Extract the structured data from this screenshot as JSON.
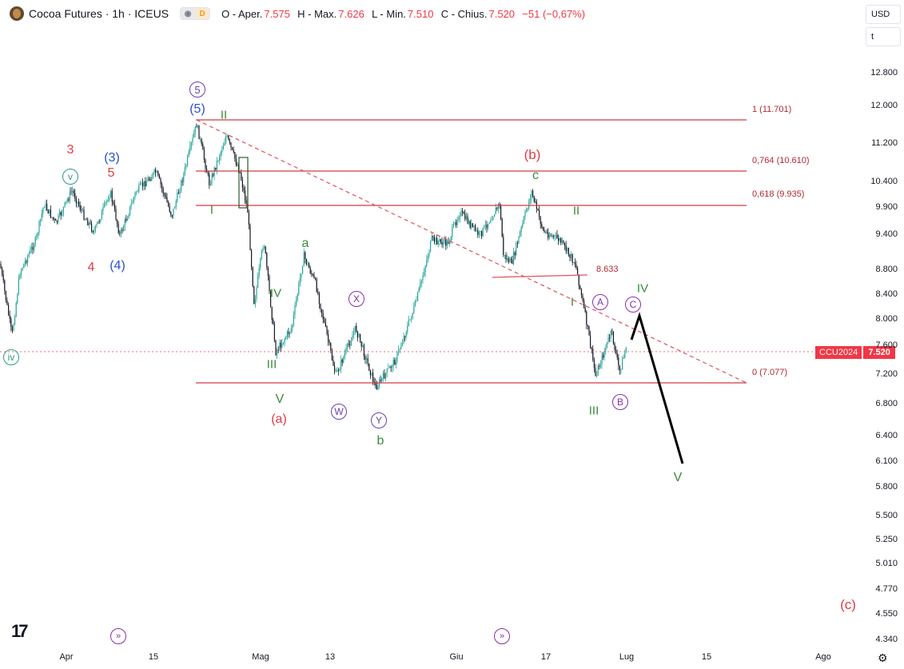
{
  "header": {
    "title": "Cocoa Futures · 1h · ICEUS",
    "badge_eye": "◉",
    "badge_d": "D",
    "ohlc": [
      {
        "label": "O - Aper.",
        "value": "7.575"
      },
      {
        "label": "H - Max.",
        "value": "7.626"
      },
      {
        "label": "L - Min.",
        "value": "7.510"
      },
      {
        "label": "C - Chius.",
        "value": "7.520"
      },
      {
        "label": "",
        "value": "−51 (−0,67%)"
      }
    ]
  },
  "right_tools": {
    "currency": "USD",
    "scale": "t"
  },
  "y_axis": [
    "12.800",
    "12.000",
    "11.200",
    "10.400",
    "9.900",
    "9.400",
    "8.800",
    "8.400",
    "8.000",
    "7.600",
    "7.200",
    "6.800",
    "6.400",
    "6.100",
    "5.800",
    "5.500",
    "5.250",
    "5.010",
    "4.770",
    "4.550",
    "4.340"
  ],
  "x_axis": [
    "Apr",
    "15",
    "Mag",
    "13",
    "Giu",
    "17",
    "Lug",
    "15",
    "Ago"
  ],
  "price_tag": {
    "symbol": "CCU2024",
    "value": "7.520"
  },
  "fib_levels": [
    {
      "label": "1 (11.701)"
    },
    {
      "label": "0,764 (10.610)"
    },
    {
      "label": "0,618 (9.935)"
    },
    {
      "label": "0 (7.077)"
    }
  ],
  "level_8633": "8.633",
  "wave_labels": [
    {
      "id": "w1",
      "text": "3",
      "color": "#e03a45"
    },
    {
      "id": "w2",
      "text": "5",
      "color": "#e03a45"
    },
    {
      "id": "w3",
      "text": "4",
      "color": "#e03a45"
    },
    {
      "id": "w4",
      "text": "(3)",
      "color": "#2a4fd0"
    },
    {
      "id": "w5",
      "text": "(4)",
      "color": "#2a4fd0"
    },
    {
      "id": "w6",
      "text": "(5)",
      "color": "#2a4fd0"
    },
    {
      "id": "w7",
      "text": "II",
      "color": "#3b8a3a"
    },
    {
      "id": "w8",
      "text": "I",
      "color": "#3b8a3a"
    },
    {
      "id": "w9",
      "text": "IV",
      "color": "#3b8a3a"
    },
    {
      "id": "w10",
      "text": "III",
      "color": "#3b8a3a"
    },
    {
      "id": "w11",
      "text": "V",
      "color": "#3b8a3a"
    },
    {
      "id": "w12",
      "text": "(a)",
      "color": "#e03a45"
    },
    {
      "id": "w13",
      "text": "a",
      "color": "#3b8a3a"
    },
    {
      "id": "w14",
      "text": "b",
      "color": "#3b8a3a"
    },
    {
      "id": "w15",
      "text": "(b)",
      "color": "#e03a45"
    },
    {
      "id": "w16",
      "text": "c",
      "color": "#3b8a3a"
    },
    {
      "id": "w17",
      "text": "II",
      "color": "#3b8a3a"
    },
    {
      "id": "w18",
      "text": "I",
      "color": "#3b8a3a"
    },
    {
      "id": "w19",
      "text": "III",
      "color": "#3b8a3a"
    },
    {
      "id": "w20",
      "text": "IV",
      "color": "#3b8a3a"
    },
    {
      "id": "w21",
      "text": "V",
      "color": "#3b8a3a"
    },
    {
      "id": "w22",
      "text": "(c)",
      "color": "#e03a45"
    }
  ],
  "circle_labels": [
    {
      "id": "c1",
      "text": "v",
      "color": "#2b9a8a"
    },
    {
      "id": "c2",
      "text": "iv",
      "color": "#2b9a8a"
    },
    {
      "id": "c3",
      "text": "5",
      "color": "#6a3fb0"
    },
    {
      "id": "c4",
      "text": "X",
      "color": "#8a2fa8"
    },
    {
      "id": "c5",
      "text": "W",
      "color": "#6a3fb0"
    },
    {
      "id": "c6",
      "text": "Y",
      "color": "#6a3fb0"
    },
    {
      "id": "c7",
      "text": "A",
      "color": "#8a2fa8"
    },
    {
      "id": "c8",
      "text": "B",
      "color": "#8a2fa8"
    },
    {
      "id": "c9",
      "text": "C",
      "color": "#8a2fa8"
    }
  ],
  "icons": {
    "logo": "tradingview-logo",
    "settings": "gear-icon",
    "jump": "jump-arrow-icon"
  }
}
